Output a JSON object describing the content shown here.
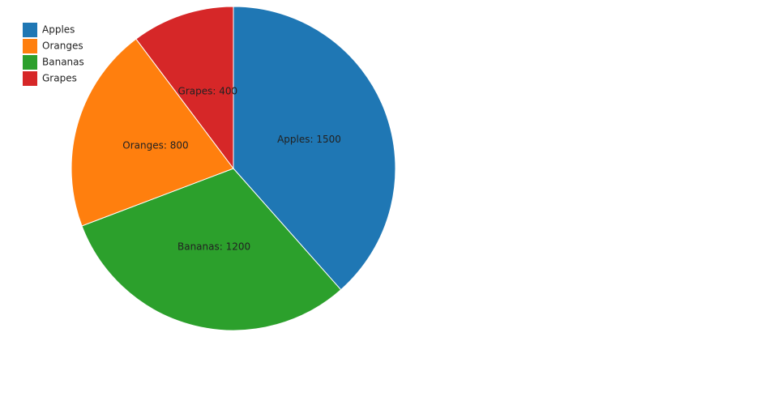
{
  "chart_data": {
    "type": "pie",
    "sort": true,
    "categories": [
      "Apples",
      "Oranges",
      "Bananas",
      "Grapes"
    ],
    "values": [
      1500,
      800,
      1200,
      400
    ],
    "value_labels": [
      "Apples: 1500",
      "Oranges: 800",
      "Bananas: 1200",
      "Grapes: 400"
    ],
    "colors": [
      "#1f77b4",
      "#ff7f0e",
      "#2ca02c",
      "#d62728"
    ],
    "legend": "upper-left"
  }
}
